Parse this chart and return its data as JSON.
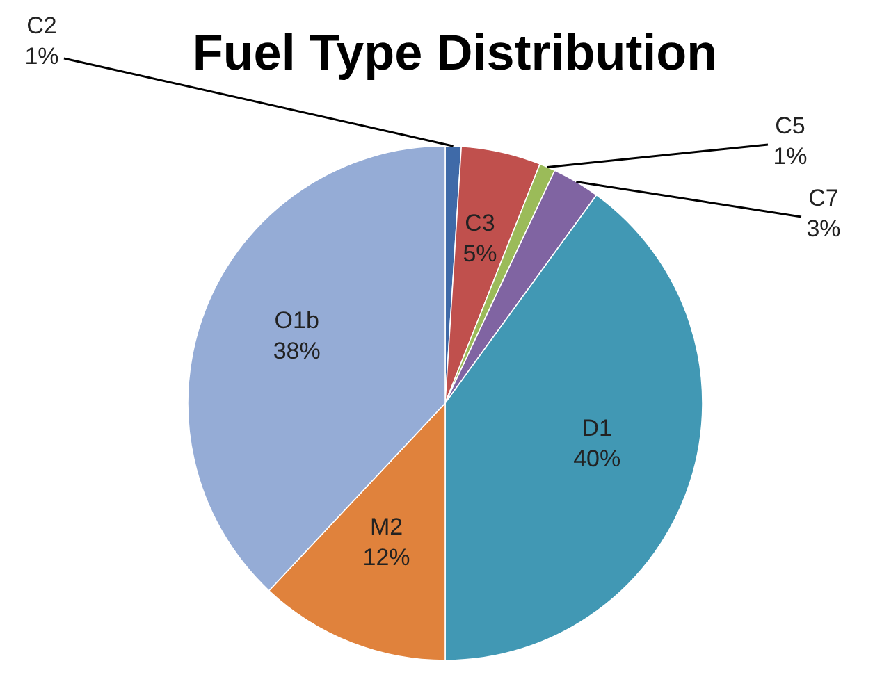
{
  "chart_data": {
    "type": "pie",
    "title": "Fuel Type Distribution",
    "categories": [
      "C2",
      "C3",
      "C5",
      "C7",
      "D1",
      "M2",
      "O1b"
    ],
    "values": [
      1,
      5,
      1,
      3,
      40,
      12,
      38
    ],
    "value_labels": [
      "1%",
      "5%",
      "1%",
      "3%",
      "40%",
      "12%",
      "38%"
    ],
    "colors": [
      "#3f6aa8",
      "#c0504d",
      "#9bbb59",
      "#8064a2",
      "#4198b4",
      "#e0823c",
      "#95acd6"
    ]
  }
}
